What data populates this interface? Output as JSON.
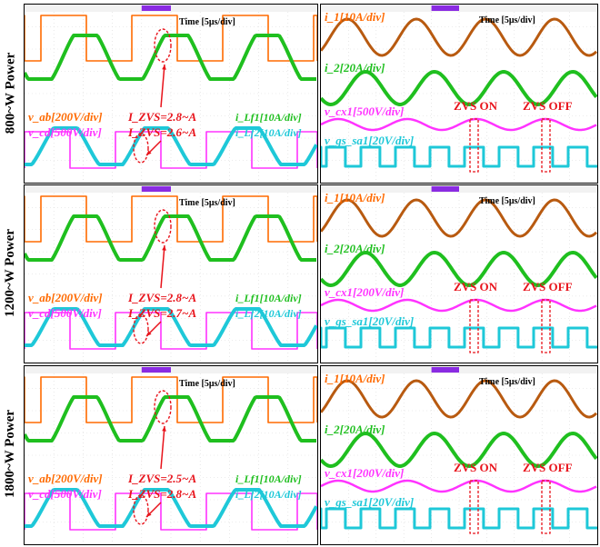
{
  "colors": {
    "orange": "#ff6a00",
    "orange_dark": "#b85a10",
    "green": "#1fbf1f",
    "magenta": "#ff33ff",
    "cyan": "#1ec8d8",
    "red": "#e8131b",
    "purple": "#8a2be2",
    "grid": "#d9d9d9"
  },
  "rows": [
    {
      "label": "800~W Power",
      "left": {
        "time_label": "Time [5μs/div]",
        "izvs1": "I_ZVS=2.8~A",
        "izvs2": "I_ZVS=2.6~A",
        "scale1": "v_ab[200V/div]",
        "scale2": "v_cd[500V/div]",
        "scale3": "i_Lf1[10A/div]",
        "scale4": "i_Lf2[10A/div]"
      },
      "right": {
        "time_label": "Time [5μs/div]",
        "scale1": "i_1[10A/div]",
        "scale2": "i_2[20A/div]",
        "scale3": "v_cx1[500V/div]",
        "scale4": "v_gs_sa1[20V/div]",
        "zvs_on": "ZVS ON",
        "zvs_off": "ZVS OFF"
      }
    },
    {
      "label": "1200~W Power",
      "left": {
        "time_label": "Time [5μs/div]",
        "izvs1": "I_ZVS=2.8~A",
        "izvs2": "I_ZVS=2.7~A",
        "scale1": "v_ab[200V/div]",
        "scale2": "v_cd[500V/div]",
        "scale3": "i_Lf1[10A/div]",
        "scale4": "i_Lf2[10A/div]"
      },
      "right": {
        "time_label": "Time [5μs/div]",
        "scale1": "i_1[10A/div]",
        "scale2": "i_2[20A/div]",
        "scale3": "v_cx1[200V/div]",
        "scale4": "v_gs_sa1[20V/div]",
        "zvs_on": "ZVS ON",
        "zvs_off": "ZVS OFF"
      }
    },
    {
      "label": "1800~W Power",
      "left": {
        "time_label": "Time [5μs/div]",
        "izvs1": "I_ZVS=2.5~A",
        "izvs2": "I_ZVS=2.8~A",
        "scale1": "v_ab[200V/div]",
        "scale2": "v_cd[500V/div]",
        "scale3": "i_Lf1[10A/div]",
        "scale4": "i_Lf2[10A/div]"
      },
      "right": {
        "time_label": "Time [5μs/div]",
        "scale1": "i_1[10A/div]",
        "scale2": "i_2[20A/div]",
        "scale3": "v_cx1[200V/div]",
        "scale4": "v_gs_sa1[20V/div]",
        "zvs_on": "ZVS ON",
        "zvs_off": "ZVS OFF"
      }
    }
  ],
  "chart_data": [
    {
      "type": "line",
      "panel": "800W-left",
      "time_scale": "5 μs/div",
      "series": [
        {
          "name": "v_ab",
          "scale": "200V/div"
        },
        {
          "name": "v_cd",
          "scale": "500V/div"
        },
        {
          "name": "i_Lf1",
          "scale": "10A/div"
        },
        {
          "name": "i_Lf2",
          "scale": "10A/div"
        }
      ],
      "annotations": [
        "I_ZVS=2.8~A",
        "I_ZVS=2.6~A"
      ]
    },
    {
      "type": "line",
      "panel": "800W-right",
      "time_scale": "5 μs/div",
      "series": [
        {
          "name": "i_1",
          "scale": "10A/div"
        },
        {
          "name": "i_2",
          "scale": "20A/div"
        },
        {
          "name": "v_cx1",
          "scale": "500V/div"
        },
        {
          "name": "v_gs_sa1",
          "scale": "20V/div"
        }
      ],
      "annotations": [
        "ZVS ON",
        "ZVS OFF"
      ]
    },
    {
      "type": "line",
      "panel": "1200W-left",
      "time_scale": "5 μs/div",
      "series": [
        {
          "name": "v_ab",
          "scale": "200V/div"
        },
        {
          "name": "v_cd",
          "scale": "500V/div"
        },
        {
          "name": "i_Lf1",
          "scale": "10A/div"
        },
        {
          "name": "i_Lf2",
          "scale": "10A/div"
        }
      ],
      "annotations": [
        "I_ZVS=2.8~A",
        "I_ZVS=2.7~A"
      ]
    },
    {
      "type": "line",
      "panel": "1200W-right",
      "time_scale": "5 μs/div",
      "series": [
        {
          "name": "i_1",
          "scale": "10A/div"
        },
        {
          "name": "i_2",
          "scale": "20A/div"
        },
        {
          "name": "v_cx1",
          "scale": "200V/div"
        },
        {
          "name": "v_gs_sa1",
          "scale": "20V/div"
        }
      ],
      "annotations": [
        "ZVS ON",
        "ZVS OFF"
      ]
    },
    {
      "type": "line",
      "panel": "1800W-left",
      "time_scale": "5 μs/div",
      "series": [
        {
          "name": "v_ab",
          "scale": "200V/div"
        },
        {
          "name": "v_cd",
          "scale": "500V/div"
        },
        {
          "name": "i_Lf1",
          "scale": "10A/div"
        },
        {
          "name": "i_Lf2",
          "scale": "10A/div"
        }
      ],
      "annotations": [
        "I_ZVS=2.5~A",
        "I_ZVS=2.8~A"
      ]
    },
    {
      "type": "line",
      "panel": "1800W-right",
      "time_scale": "5 μs/div",
      "series": [
        {
          "name": "i_1",
          "scale": "10A/div"
        },
        {
          "name": "i_2",
          "scale": "20A/div"
        },
        {
          "name": "v_cx1",
          "scale": "200V/div"
        },
        {
          "name": "v_gs_sa1",
          "scale": "20V/div"
        }
      ],
      "annotations": [
        "ZVS ON",
        "ZVS OFF"
      ]
    }
  ]
}
